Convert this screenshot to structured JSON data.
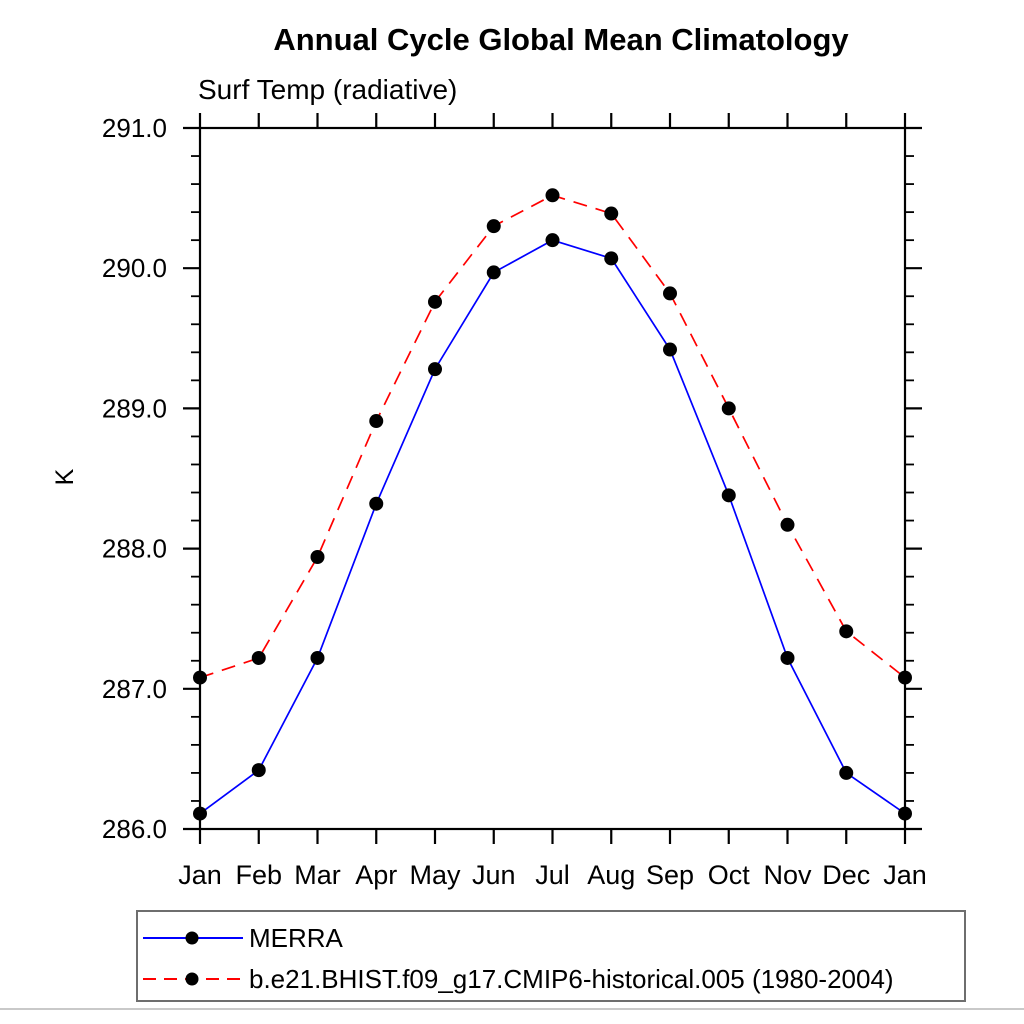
{
  "title": "Annual Cycle Global Mean Climatology",
  "subtitle": "Surf Temp (radiative)",
  "chart_data": {
    "type": "line",
    "title": "Annual Cycle Global Mean Climatology",
    "subtitle": "Surf Temp (radiative)",
    "xlabel": "",
    "ylabel": "K",
    "x_tick_labels": [
      "Jan",
      "Feb",
      "Mar",
      "Apr",
      "May",
      "Jun",
      "Jul",
      "Aug",
      "Sep",
      "Oct",
      "Nov",
      "Dec",
      "Jan"
    ],
    "y_tick_labels": [
      "286.0",
      "287.0",
      "288.0",
      "289.0",
      "290.0",
      "291.0"
    ],
    "ylim": [
      286.0,
      291.0
    ],
    "y_major_step": 1.0,
    "y_minor_step": 0.2,
    "grid": "off",
    "legend_position": "bottom-left-outside",
    "axis_color": "#000000",
    "marker_shape": "filled-circle",
    "series": [
      {
        "name": "MERRA",
        "color": "#0000ff",
        "style": "solid",
        "marker_color": "#000000",
        "values": [
          286.11,
          286.42,
          287.22,
          288.32,
          289.28,
          289.97,
          290.2,
          290.07,
          289.42,
          288.38,
          287.22,
          286.4,
          286.11
        ]
      },
      {
        "name": "b.e21.BHIST.f09_g17.CMIP6-historical.005 (1980-2004)",
        "color": "#ff0000",
        "style": "dashed",
        "marker_color": "#000000",
        "values": [
          287.08,
          287.22,
          287.94,
          288.91,
          289.76,
          290.3,
          290.52,
          290.39,
          289.82,
          289.0,
          288.17,
          287.41,
          287.08
        ]
      }
    ]
  }
}
